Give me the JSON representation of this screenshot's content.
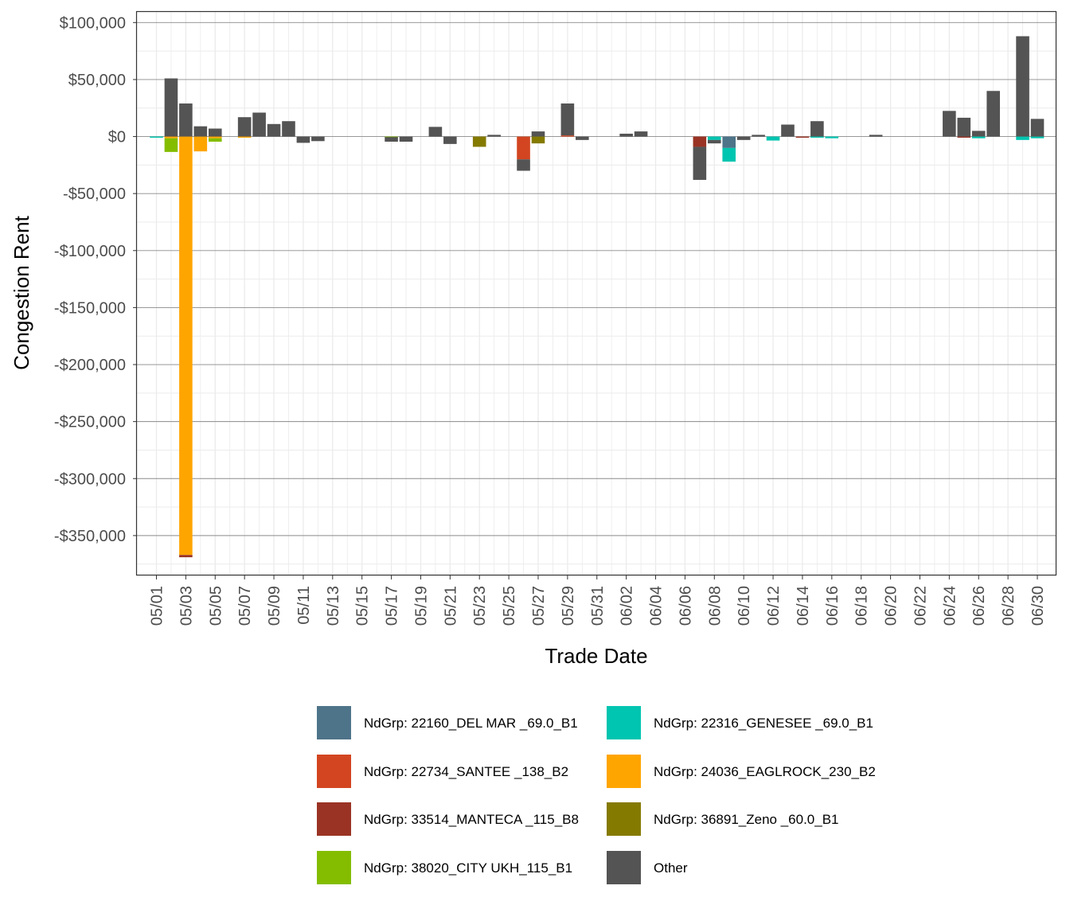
{
  "chart_data": {
    "type": "bar",
    "stacked": true,
    "xlabel": "Trade Date",
    "ylabel": "Congestion Rent",
    "ylim": [
      -385000,
      110000
    ],
    "y_ticks": [
      100000,
      50000,
      0,
      -50000,
      -100000,
      -150000,
      -200000,
      -250000,
      -300000,
      -350000
    ],
    "y_tick_labels": [
      "$100,000",
      "$50,000",
      "$0",
      "-$50,000",
      "-$100,000",
      "-$150,000",
      "-$200,000",
      "-$250,000",
      "-$300,000",
      "-$350,000"
    ],
    "dates": [
      "05/01",
      "05/02",
      "05/03",
      "05/04",
      "05/05",
      "05/06",
      "05/07",
      "05/08",
      "05/09",
      "05/10",
      "05/11",
      "05/12",
      "05/13",
      "05/14",
      "05/15",
      "05/16",
      "05/17",
      "05/18",
      "05/19",
      "05/20",
      "05/21",
      "05/22",
      "05/23",
      "05/24",
      "05/25",
      "05/26",
      "05/27",
      "05/28",
      "05/29",
      "05/30",
      "05/31",
      "06/01",
      "06/02",
      "06/03",
      "06/04",
      "06/05",
      "06/06",
      "06/07",
      "06/08",
      "06/09",
      "06/10",
      "06/11",
      "06/12",
      "06/13",
      "06/14",
      "06/15",
      "06/16",
      "06/17",
      "06/18",
      "06/19",
      "06/20",
      "06/21",
      "06/22",
      "06/23",
      "06/24",
      "06/25",
      "06/26",
      "06/27",
      "06/28",
      "06/29",
      "06/30"
    ],
    "x_tick_labels": [
      "05/01",
      "05/03",
      "05/05",
      "05/07",
      "05/09",
      "05/11",
      "05/13",
      "05/15",
      "05/17",
      "05/19",
      "05/21",
      "05/23",
      "05/25",
      "05/27",
      "05/29",
      "05/31",
      "06/02",
      "06/04",
      "06/06",
      "06/08",
      "06/10",
      "06/12",
      "06/14",
      "06/16",
      "06/18",
      "06/20",
      "06/22",
      "06/24",
      "06/26",
      "06/28",
      "06/30"
    ],
    "legend_position": "bottom",
    "series": [
      {
        "name": "NdGrp: 22160_DEL MAR _69.0_B1",
        "color": "#4E7489",
        "values": {
          "06/09": -10000
        }
      },
      {
        "name": "NdGrp: 22316_GENESEE _69.0_B1",
        "color": "#00C5B0",
        "values": {
          "05/01": -1000,
          "06/08": -3000,
          "06/09": -12000,
          "06/12": -3500,
          "06/15": -1000,
          "06/16": -1500,
          "06/26": -1500,
          "06/29": -3000,
          "06/30": -1500
        }
      },
      {
        "name": "NdGrp: 22734_SANTEE _138_B2",
        "color": "#D24520",
        "values": {
          "05/26": -20000,
          "05/29": 1000
        }
      },
      {
        "name": "NdGrp: 24036_EAGLROCK_230_B2",
        "color": "#FFA500",
        "values": {
          "05/02": -1500,
          "05/03": -367000,
          "05/04": -13000,
          "05/05": -1500,
          "05/07": -1000
        }
      },
      {
        "name": "NdGrp: 33514_MANTECA _115_B8",
        "color": "#9A3324",
        "values": {
          "05/03": -2000,
          "06/07": -9000,
          "06/14": -1000,
          "06/25": -1000
        }
      },
      {
        "name": "NdGrp: 36891_Zeno _60.0_B1",
        "color": "#857A00",
        "values": {
          "05/23": -9000,
          "05/27": -6000
        }
      },
      {
        "name": "NdGrp: 38020_CITY UKH_115_B1",
        "color": "#84BD00",
        "values": {
          "05/02": -12000,
          "05/05": -3000,
          "05/17": -500
        }
      },
      {
        "name": "Other",
        "color": "#545454",
        "values": {
          "05/02": 51000,
          "05/03": 29000,
          "05/04": 9000,
          "05/05": 7000,
          "05/07": 17000,
          "05/08": 21000,
          "05/09": 11000,
          "05/10": 13500,
          "05/11": -5500,
          "05/12": -4000,
          "05/17": -4000,
          "05/18": -4500,
          "05/20": 8500,
          "05/21": -6500,
          "05/24": 1500,
          "05/26": -10000,
          "05/27": 4500,
          "05/29": 28000,
          "05/30": -3000,
          "06/02": 2500,
          "06/03": 4500,
          "06/07": -29000,
          "06/08": -3000,
          "06/10": -3000,
          "06/11": 1500,
          "06/13": 10500,
          "06/15": 13500,
          "06/19": 1500,
          "06/24": 22500,
          "06/25": 16500,
          "06/26": 5000,
          "06/27": 40000,
          "06/29": 88000,
          "06/30": 15500
        }
      }
    ]
  }
}
